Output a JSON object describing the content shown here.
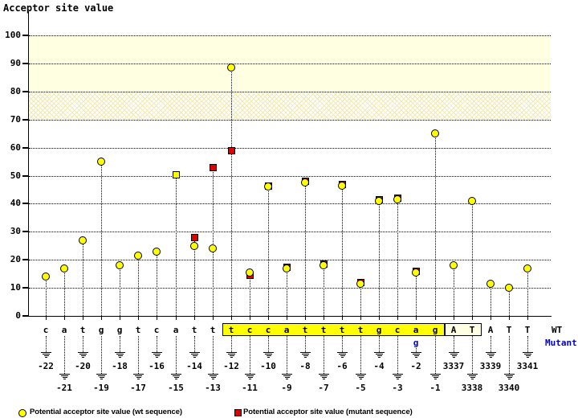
{
  "title": "Acceptor site value",
  "row_labels": {
    "wt": "WT",
    "mutant": "Mutant"
  },
  "legend": {
    "wt_label": "Potential acceptor site value (wt sequence)",
    "mutant_label": "Potential acceptor site value (mutant sequence)"
  },
  "colors": {
    "wt_marker": "#ffff00",
    "mutant_marker": "#dd0000",
    "marker_border": "#000000",
    "sequence_highlight": "#ffff00",
    "exon_box_fill": "#ffffe2",
    "score_band_fill": "#ffffe2",
    "mutant_text": "#0000cc",
    "grid": "#000000"
  },
  "chart_data": {
    "type": "scatter",
    "title": "Acceptor site value",
    "ylabel": "Acceptor site value",
    "xlabel": "",
    "ylim": [
      0,
      100
    ],
    "yticks": [
      0,
      10,
      20,
      30,
      40,
      50,
      60,
      70,
      80,
      90,
      100
    ],
    "grid": "dotted horizontal",
    "legend_position": "bottom",
    "bands": [
      {
        "from": 80,
        "to": 100,
        "style": "solid"
      },
      {
        "from": 70,
        "to": 80,
        "style": "crosshatch"
      }
    ],
    "series": [
      {
        "name": "Potential acceptor site value (wt sequence)",
        "marker": "yellow-circle"
      },
      {
        "name": "Potential acceptor site value (mutant sequence)",
        "marker": "red-square"
      }
    ],
    "columns": [
      {
        "pos": "-22",
        "base": "c",
        "wt": 14
      },
      {
        "pos": "-21",
        "base": "a",
        "wt": 17
      },
      {
        "pos": "-20",
        "base": "t",
        "wt": 27
      },
      {
        "pos": "-19",
        "base": "g",
        "wt": 55
      },
      {
        "pos": "-18",
        "base": "g",
        "wt": 18
      },
      {
        "pos": "-17",
        "base": "t",
        "wt": 21.5
      },
      {
        "pos": "-16",
        "base": "c",
        "wt": 23
      },
      {
        "pos": "-15",
        "base": "a",
        "wt": 50.5,
        "mutant": 50.5,
        "merged": true
      },
      {
        "pos": "-14",
        "base": "t",
        "wt": 25,
        "mutant": 28
      },
      {
        "pos": "-13",
        "base": "t",
        "wt": 24,
        "mutant": 53
      },
      {
        "pos": "-12",
        "base": "t",
        "wt": 88.5,
        "mutant": 59,
        "highlight": true
      },
      {
        "pos": "-11",
        "base": "c",
        "wt": 15.5,
        "mutant": 14.5,
        "highlight": true
      },
      {
        "pos": "-10",
        "base": "c",
        "wt": 46,
        "mutant": 46.5,
        "highlight": true
      },
      {
        "pos": "-9",
        "base": "a",
        "wt": 17,
        "mutant": 17.5,
        "highlight": true
      },
      {
        "pos": "-8",
        "base": "t",
        "wt": 47.5,
        "mutant": 48,
        "highlight": true
      },
      {
        "pos": "-7",
        "base": "t",
        "wt": 18,
        "mutant": 18.5,
        "highlight": true
      },
      {
        "pos": "-6",
        "base": "t",
        "wt": 46.5,
        "mutant": 47,
        "highlight": true
      },
      {
        "pos": "-5",
        "base": "t",
        "wt": 11.5,
        "mutant": 12,
        "highlight": true
      },
      {
        "pos": "-4",
        "base": "g",
        "wt": 41,
        "mutant": 41.5,
        "highlight": true
      },
      {
        "pos": "-3",
        "base": "c",
        "wt": 41.5,
        "mutant": 42,
        "highlight": true
      },
      {
        "pos": "-2",
        "base": "a",
        "mutant_base": "g",
        "wt": 15.5,
        "mutant": 16,
        "highlight": true
      },
      {
        "pos": "-1",
        "base": "g",
        "wt": 65,
        "highlight": true
      },
      {
        "pos": "3337",
        "base": "A",
        "wt": 18,
        "exon": true
      },
      {
        "pos": "3338",
        "base": "T",
        "wt": 41,
        "exon": true
      },
      {
        "pos": "3339",
        "base": "A",
        "wt": 11.5
      },
      {
        "pos": "3340",
        "base": "T",
        "wt": 10
      },
      {
        "pos": "3341",
        "base": "T",
        "wt": 17
      }
    ]
  }
}
